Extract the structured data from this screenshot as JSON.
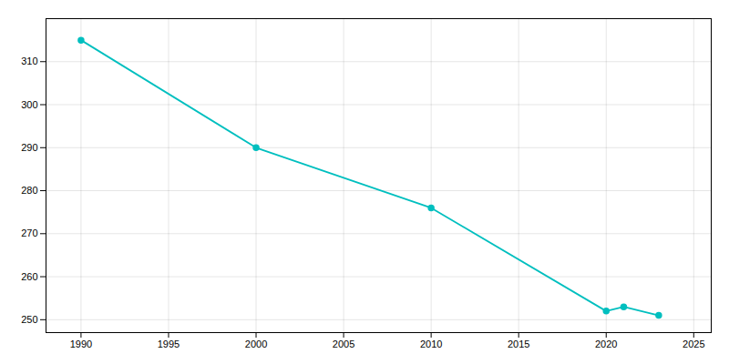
{
  "chart_data": {
    "type": "line",
    "x": [
      1990,
      2000,
      2010,
      2020,
      2021,
      2023
    ],
    "values": [
      315,
      290,
      276,
      252,
      253,
      251
    ],
    "color": "#00BFBF",
    "marker": "circle",
    "xlim": [
      1988,
      2026
    ],
    "ylim": [
      247,
      320
    ],
    "xticks": [
      1990,
      1995,
      2000,
      2005,
      2010,
      2015,
      2020,
      2025
    ],
    "yticks": [
      250,
      260,
      270,
      280,
      290,
      300,
      310
    ],
    "grid": true
  }
}
